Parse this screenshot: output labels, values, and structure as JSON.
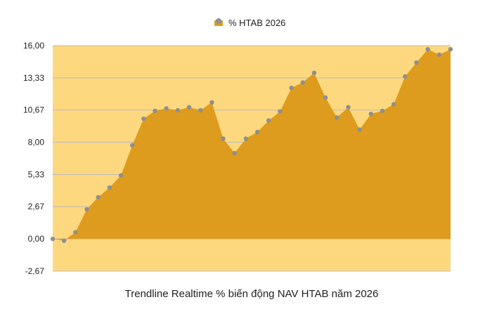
{
  "chart_data": {
    "type": "area",
    "xlabel": "Trendline Realtime % biến động NAV HTAB năm 2026",
    "ylabel": "",
    "ylim": [
      -2.67,
      16.0
    ],
    "yticks": [
      "16,00",
      "13,33",
      "10,67",
      "8,00",
      "5,33",
      "2,67",
      "0,00",
      "-2,67"
    ],
    "ytick_values": [
      16.0,
      13.33,
      10.67,
      8.0,
      5.33,
      2.67,
      0.0,
      -2.67
    ],
    "grid": true,
    "legend": "top-center",
    "series": [
      {
        "name": "% HTAB 2026",
        "values": [
          0.0,
          -0.15,
          0.55,
          2.45,
          3.45,
          4.25,
          5.25,
          7.75,
          9.95,
          10.6,
          10.8,
          10.65,
          10.9,
          10.65,
          11.3,
          8.3,
          7.1,
          8.3,
          8.85,
          9.8,
          10.55,
          12.5,
          12.95,
          13.75,
          11.7,
          10.05,
          10.9,
          9.05,
          10.35,
          10.6,
          11.15,
          13.45,
          14.6,
          15.7,
          15.25,
          15.7
        ]
      }
    ],
    "colors": {
      "plot_background": "#fed87f",
      "area_fill": "#dd9c1e",
      "point": "#8f8f8f",
      "grid": "#bbbbbb"
    }
  }
}
